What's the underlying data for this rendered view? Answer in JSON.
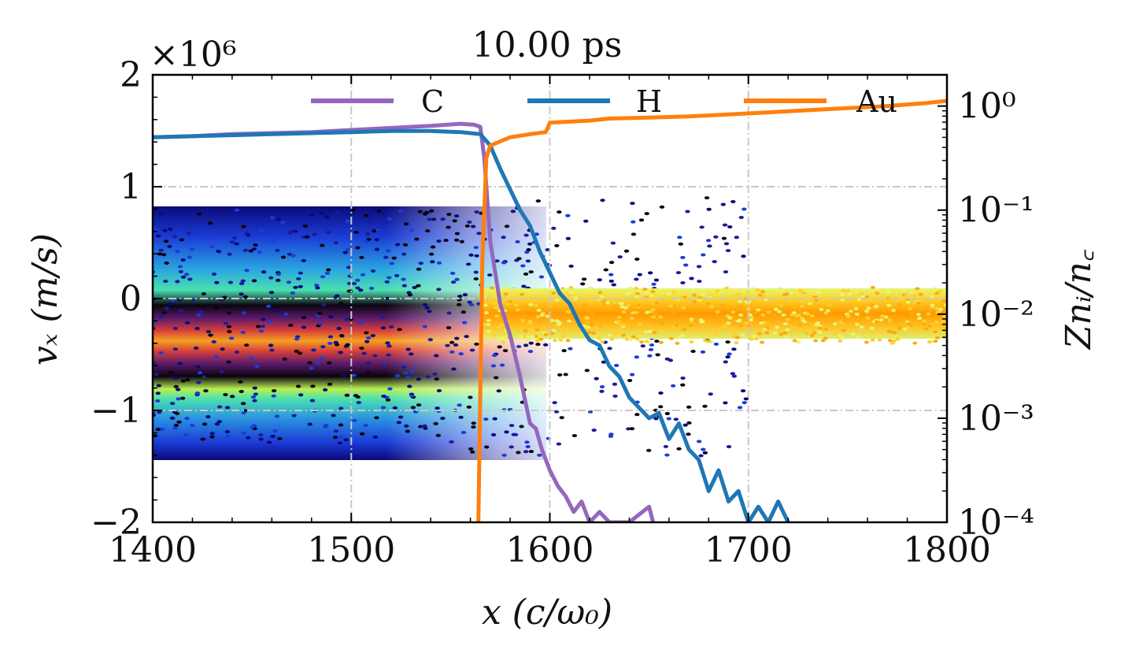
{
  "chart_data": {
    "type": "line",
    "title": "10.00 ps",
    "xlabel": "x (c/ω₀)",
    "ylabel_left": "vₓ (m/s)",
    "ylabel_right": "Znᵢ/n꜀",
    "left_multiplier": "×10⁶",
    "xlim": [
      1400,
      1800
    ],
    "ylim_left": [
      -2,
      2
    ],
    "ylim_right_log10": [
      -4,
      0.3
    ],
    "x_ticks": [
      1400,
      1500,
      1600,
      1700,
      1800
    ],
    "x_tick_labels": [
      "1400",
      "1500",
      "1600",
      "1700",
      "1800"
    ],
    "y_left_ticks": [
      -2,
      -1,
      0,
      1,
      2
    ],
    "y_left_tick_labels": [
      "−2",
      "−1",
      "0",
      "1",
      "2"
    ],
    "y_right_ticks_log10": [
      -4,
      -3,
      -2,
      -1,
      0
    ],
    "y_right_tick_labels": [
      "10⁻⁴",
      "10⁻³",
      "10⁻²",
      "10⁻¹",
      "10⁰"
    ],
    "grid": true,
    "legend_position": "top",
    "series": [
      {
        "name": "C",
        "color": "#9467bd",
        "axis": "right-log",
        "x": [
          1400,
          1420,
          1440,
          1460,
          1480,
          1500,
          1520,
          1540,
          1555,
          1562,
          1565,
          1567,
          1570,
          1575,
          1580,
          1585,
          1590,
          1593,
          1596,
          1600,
          1604,
          1608,
          1612,
          1616,
          1620,
          1625,
          1630,
          1640,
          1650,
          1652
        ],
        "log10_values": [
          -0.3,
          -0.29,
          -0.27,
          -0.26,
          -0.25,
          -0.23,
          -0.21,
          -0.19,
          -0.17,
          -0.18,
          -0.2,
          -0.5,
          -1.3,
          -1.9,
          -2.2,
          -2.6,
          -3.05,
          -3.1,
          -3.3,
          -3.5,
          -3.65,
          -3.75,
          -3.9,
          -3.8,
          -4.0,
          -3.9,
          -4.0,
          -4.0,
          -3.85,
          -4.0
        ]
      },
      {
        "name": "H",
        "color": "#1f77b4",
        "axis": "right-log",
        "x": [
          1400,
          1420,
          1440,
          1460,
          1480,
          1500,
          1520,
          1540,
          1555,
          1565,
          1570,
          1575,
          1580,
          1585,
          1590,
          1595,
          1600,
          1605,
          1610,
          1615,
          1620,
          1625,
          1630,
          1635,
          1640,
          1645,
          1650,
          1655,
          1660,
          1665,
          1670,
          1675,
          1680,
          1685,
          1690,
          1695,
          1700,
          1705,
          1710,
          1715,
          1720
        ],
        "log10_values": [
          -0.3,
          -0.29,
          -0.28,
          -0.27,
          -0.26,
          -0.25,
          -0.24,
          -0.24,
          -0.25,
          -0.27,
          -0.38,
          -0.6,
          -0.8,
          -1.0,
          -1.15,
          -1.4,
          -1.6,
          -1.8,
          -1.9,
          -2.1,
          -2.25,
          -2.3,
          -2.5,
          -2.6,
          -2.8,
          -2.9,
          -3.0,
          -2.95,
          -3.2,
          -3.05,
          -3.3,
          -3.4,
          -3.7,
          -3.5,
          -3.8,
          -3.7,
          -4.0,
          -3.85,
          -4.0,
          -3.8,
          -4.0
        ]
      },
      {
        "name": "Au",
        "color": "#ff7f0e",
        "axis": "right-log",
        "x": [
          1564,
          1566,
          1568,
          1570,
          1575,
          1580,
          1590,
          1598,
          1600,
          1610,
          1620,
          1630,
          1650,
          1670,
          1690,
          1710,
          1730,
          1750,
          1770,
          1790,
          1800
        ],
        "log10_values": [
          -4.0,
          -1.5,
          -0.5,
          -0.38,
          -0.34,
          -0.3,
          -0.27,
          -0.25,
          -0.16,
          -0.15,
          -0.14,
          -0.12,
          -0.11,
          -0.1,
          -0.08,
          -0.06,
          -0.04,
          -0.02,
          0.0,
          0.03,
          0.05
        ]
      }
    ],
    "background_phase_space": [
      {
        "species": "light ions (C, H)",
        "x_range": [
          1400,
          1700
        ],
        "vx_center_e6": -0.25,
        "vx_halfwidth_e6": 1.05,
        "colormap": "turbo"
      },
      {
        "species": "Au",
        "x_range": [
          1565,
          1800
        ],
        "vx_center_e6": -0.15,
        "vx_halfwidth_e6": 0.25,
        "colormap": "yellow-orange"
      }
    ]
  }
}
